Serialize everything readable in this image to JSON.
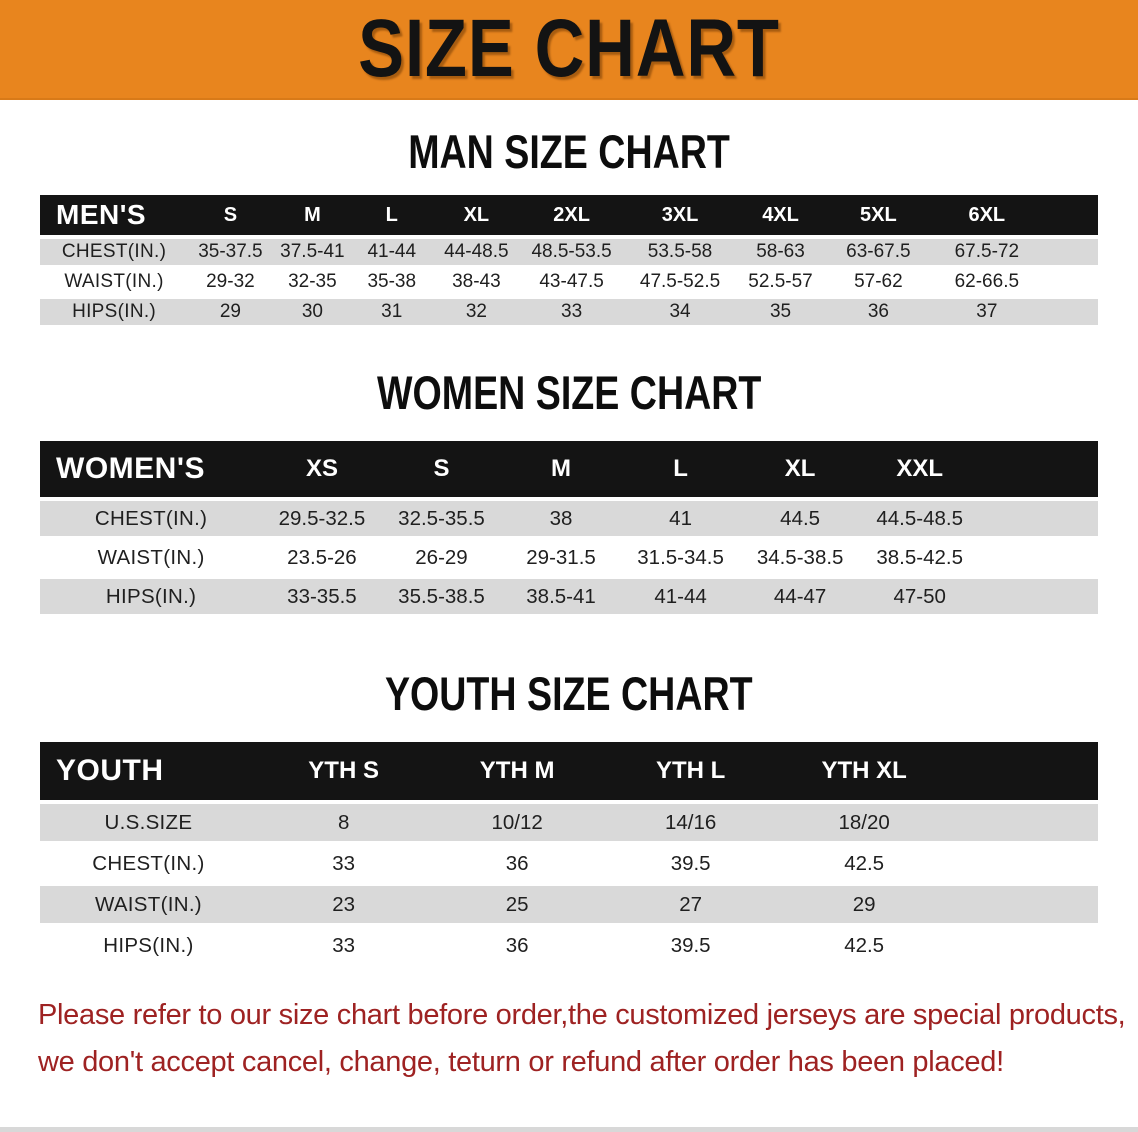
{
  "banner": {
    "title": "SIZE CHART"
  },
  "colors": {
    "banner_bg": "#E8851E",
    "header_bar_bg": "#141414",
    "row_stripe": "#D9D9D9",
    "disclaimer_text": "#9E2222"
  },
  "sections": [
    {
      "heading": "MAN SIZE CHART",
      "table": {
        "header_label": "MEN'S",
        "sizes": [
          "S",
          "M",
          "L",
          "XL",
          "2XL",
          "3XL",
          "4XL",
          "5XL",
          "6XL"
        ],
        "rows": [
          {
            "label": "CHEST(IN.)",
            "values": [
              "35-37.5",
              "37.5-41",
              "41-44",
              "44-48.5",
              "48.5-53.5",
              "53.5-58",
              "58-63",
              "63-67.5",
              "67.5-72"
            ]
          },
          {
            "label": "WAIST(IN.)",
            "values": [
              "29-32",
              "32-35",
              "35-38",
              "38-43",
              "43-47.5",
              "47.5-52.5",
              "52.5-57",
              "57-62",
              "62-66.5"
            ]
          },
          {
            "label": "HIPS(IN.)",
            "values": [
              "29",
              "30",
              "31",
              "32",
              "33",
              "34",
              "35",
              "36",
              "37"
            ]
          }
        ]
      }
    },
    {
      "heading": "WOMEN SIZE CHART",
      "table": {
        "header_label": "WOMEN'S",
        "sizes": [
          "XS",
          "S",
          "M",
          "L",
          "XL",
          "XXL"
        ],
        "rows": [
          {
            "label": "CHEST(IN.)",
            "values": [
              "29.5-32.5",
              "32.5-35.5",
              "38",
              "41",
              "44.5",
              "44.5-48.5"
            ]
          },
          {
            "label": "WAIST(IN.)",
            "values": [
              "23.5-26",
              "26-29",
              "29-31.5",
              "31.5-34.5",
              "34.5-38.5",
              "38.5-42.5"
            ]
          },
          {
            "label": "HIPS(IN.)",
            "values": [
              "33-35.5",
              "35.5-38.5",
              "38.5-41",
              "41-44",
              "44-47",
              "47-50"
            ]
          }
        ]
      }
    },
    {
      "heading": "YOUTH SIZE CHART",
      "table": {
        "header_label": "YOUTH",
        "sizes": [
          "YTH S",
          "YTH M",
          "YTH L",
          "YTH XL"
        ],
        "rows": [
          {
            "label": "U.S.SIZE",
            "values": [
              "8",
              "10/12",
              "14/16",
              "18/20"
            ]
          },
          {
            "label": "CHEST(IN.)",
            "values": [
              "33",
              "36",
              "39.5",
              "42.5"
            ]
          },
          {
            "label": "WAIST(IN.)",
            "values": [
              "23",
              "25",
              "27",
              "29"
            ]
          },
          {
            "label": "HIPS(IN.)",
            "values": [
              "33",
              "36",
              "39.5",
              "42.5"
            ]
          }
        ]
      }
    }
  ],
  "disclaimer": {
    "line1": "Please refer to our size chart before order,the customized jerseys are special products,",
    "line2": "we don't accept cancel, change, teturn or refund after order has been placed!"
  }
}
